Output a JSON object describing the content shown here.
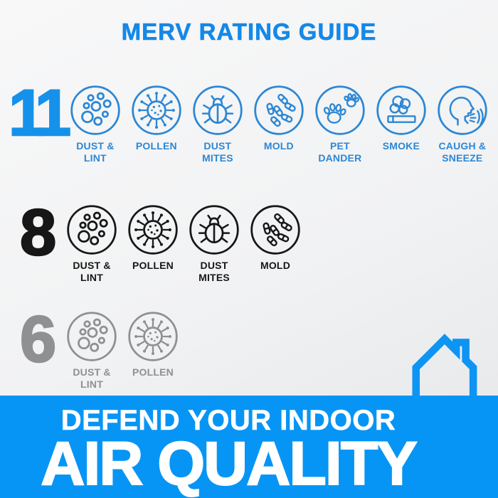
{
  "title": "MERV RATING GUIDE",
  "colors": {
    "title": "#1588e8",
    "merv11": "#2d87d4",
    "merv11_number": "#1591ea",
    "merv8": "#171717",
    "merv6": "#8e9091",
    "banner_bg": "#0795f5",
    "banner_text": "#ffffff",
    "house": "#0e94f3",
    "bg_top": "#f8f8f9",
    "bg_bottom": "#e5e6e8"
  },
  "rows": [
    {
      "rating": "11",
      "items": [
        {
          "icon": "dust-lint-icon",
          "label": "DUST &\nLINT"
        },
        {
          "icon": "pollen-icon",
          "label": "POLLEN"
        },
        {
          "icon": "dust-mites-icon",
          "label": "DUST\nMITES"
        },
        {
          "icon": "mold-icon",
          "label": "MOLD"
        },
        {
          "icon": "pet-dander-icon",
          "label": "PET\nDANDER"
        },
        {
          "icon": "smoke-icon",
          "label": "SMOKE"
        },
        {
          "icon": "caugh-sneeze-icon",
          "label": "CAUGH &\nSNEEZE"
        }
      ]
    },
    {
      "rating": "8",
      "items": [
        {
          "icon": "dust-lint-icon",
          "label": "DUST &\nLINT"
        },
        {
          "icon": "pollen-icon",
          "label": "POLLEN"
        },
        {
          "icon": "dust-mites-icon",
          "label": "DUST\nMITES"
        },
        {
          "icon": "mold-icon",
          "label": "MOLD"
        }
      ]
    },
    {
      "rating": "6",
      "items": [
        {
          "icon": "dust-lint-icon",
          "label": "DUST &\nLINT"
        },
        {
          "icon": "pollen-icon",
          "label": "POLLEN"
        }
      ]
    }
  ],
  "banner": {
    "line1": "DEFEND YOUR INDOOR",
    "line2": "AIR QUALITY"
  },
  "house": {
    "icon": "house-icon"
  }
}
